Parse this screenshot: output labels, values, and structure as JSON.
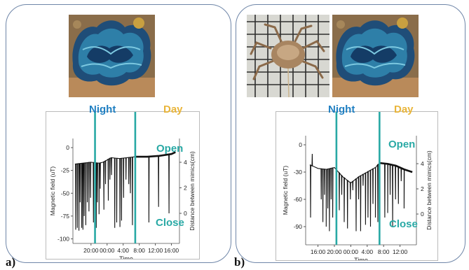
{
  "panels": [
    {
      "letter": "a)"
    },
    {
      "letter": "b)"
    }
  ],
  "colors": {
    "night": "#1f7fc2",
    "day": "#e9b53a",
    "teal": "#29a9a5",
    "trace": "#111111",
    "border": "#6f86a8"
  },
  "icons": {
    "clam": "giant-clam-photo",
    "crab": "crab-photo"
  },
  "chart_data": [
    {
      "type": "line",
      "period_labels": {
        "night": "Night",
        "day": "Day"
      },
      "state_labels": {
        "open": "Open",
        "close": "Close"
      },
      "xlabel": "Time",
      "ylabel": "Magnetic field (uT)",
      "y2label": "Distance between mimics(cm)",
      "x_ticks": [
        "20:00",
        "00:00",
        "4:00",
        "8:00",
        "12:00",
        "16:00"
      ],
      "x_tick_hours": [
        20,
        24,
        28,
        32,
        36,
        40
      ],
      "xlim_hours": [
        15.5,
        42.0
      ],
      "night_lines_hours": [
        21.0,
        31.0
      ],
      "y_ticks": [
        0,
        -25,
        -50,
        -75,
        -100
      ],
      "ylim": [
        -105,
        10
      ],
      "y2_ticks": [
        4,
        2,
        0
      ],
      "series": [
        {
          "baseline": [
            [
              16.0,
              -18
            ],
            [
              20.0,
              -16
            ],
            [
              22.0,
              -17
            ],
            [
              23.0,
              -16
            ],
            [
              25.0,
              -11
            ],
            [
              27.0,
              -12
            ],
            [
              29.0,
              -11
            ],
            [
              31.0,
              -10
            ],
            [
              34.0,
              -10
            ],
            [
              37.0,
              -9
            ],
            [
              40.0,
              -7
            ],
            [
              41.0,
              -5
            ]
          ],
          "dips": [
            [
              16.2,
              -90
            ],
            [
              16.6,
              -88
            ],
            [
              17.0,
              -91
            ],
            [
              17.3,
              -60
            ],
            [
              17.7,
              -88
            ],
            [
              18.0,
              -90
            ],
            [
              18.3,
              -75
            ],
            [
              18.7,
              -85
            ],
            [
              19.1,
              -60
            ],
            [
              19.5,
              -70
            ],
            [
              19.9,
              -55
            ],
            [
              20.6,
              -82
            ],
            [
              21.0,
              -70
            ],
            [
              21.3,
              -88
            ],
            [
              21.6,
              -60
            ],
            [
              22.0,
              -73
            ],
            [
              22.3,
              -45
            ],
            [
              23.2,
              -68
            ],
            [
              23.6,
              -40
            ],
            [
              24.3,
              -58
            ],
            [
              24.7,
              -35
            ],
            [
              25.1,
              -30
            ],
            [
              25.9,
              -88
            ],
            [
              26.4,
              -82
            ],
            [
              27.2,
              -87
            ],
            [
              27.6,
              -80
            ],
            [
              28.1,
              -55
            ],
            [
              28.7,
              -35
            ],
            [
              29.4,
              -40
            ],
            [
              29.8,
              -50
            ],
            [
              30.3,
              -85
            ],
            [
              34.4,
              -82
            ],
            [
              36.8,
              -65
            ],
            [
              39.4,
              -72
            ]
          ]
        }
      ]
    },
    {
      "type": "line",
      "period_labels": {
        "night": "Night",
        "day": "Day"
      },
      "state_labels": {
        "open": "Open",
        "close": "Close"
      },
      "xlabel": "Time",
      "ylabel": "Magnetic field (uT)",
      "y2label": "Distance between mimics(cm)",
      "x_ticks": [
        "16:00",
        "20:00",
        "00:00",
        "4:00",
        "8:00",
        "12:00"
      ],
      "x_tick_hours": [
        16,
        20,
        24,
        28,
        32,
        36
      ],
      "xlim_hours": [
        13.0,
        40.0
      ],
      "night_lines_hours": [
        20.5,
        31.0
      ],
      "y_ticks": [
        0,
        -30,
        -60,
        -90
      ],
      "ylim": [
        -110,
        10
      ],
      "y2_ticks": [
        4,
        2,
        0
      ],
      "series": [
        {
          "baseline": [
            [
              14.0,
              -22
            ],
            [
              16.0,
              -26
            ],
            [
              18.0,
              -27
            ],
            [
              20.0,
              -25
            ],
            [
              21.0,
              -30
            ],
            [
              22.0,
              -35
            ],
            [
              24.0,
              -42
            ],
            [
              26.0,
              -35
            ],
            [
              28.0,
              -30
            ],
            [
              30.0,
              -25
            ],
            [
              31.0,
              -20
            ],
            [
              33.0,
              -21
            ],
            [
              35.0,
              -23
            ],
            [
              37.0,
              -27
            ],
            [
              39.0,
              -30
            ]
          ],
          "dips": [
            [
              14.2,
              -80
            ],
            [
              14.6,
              -10
            ],
            [
              16.8,
              -60
            ],
            [
              17.2,
              -85
            ],
            [
              17.6,
              -55
            ],
            [
              18.0,
              -90
            ],
            [
              18.4,
              -70
            ],
            [
              18.8,
              -95
            ],
            [
              19.2,
              -60
            ],
            [
              19.6,
              -80
            ],
            [
              21.2,
              -72
            ],
            [
              21.8,
              -55
            ],
            [
              22.4,
              -85
            ],
            [
              23.2,
              -92
            ],
            [
              23.9,
              -60
            ],
            [
              24.5,
              -50
            ],
            [
              25.3,
              -95
            ],
            [
              25.9,
              -60
            ],
            [
              26.4,
              -95
            ],
            [
              27.0,
              -45
            ],
            [
              27.6,
              -88
            ],
            [
              28.2,
              -80
            ],
            [
              28.8,
              -90
            ],
            [
              29.4,
              -65
            ],
            [
              30.0,
              -80
            ],
            [
              30.6,
              -85
            ],
            [
              32.3,
              -80
            ],
            [
              33.0,
              -75
            ],
            [
              33.6,
              -55
            ],
            [
              34.2,
              -90
            ],
            [
              34.9,
              -60
            ],
            [
              35.6,
              -65
            ],
            [
              36.3,
              -40
            ],
            [
              37.0,
              -70
            ]
          ]
        }
      ]
    }
  ]
}
